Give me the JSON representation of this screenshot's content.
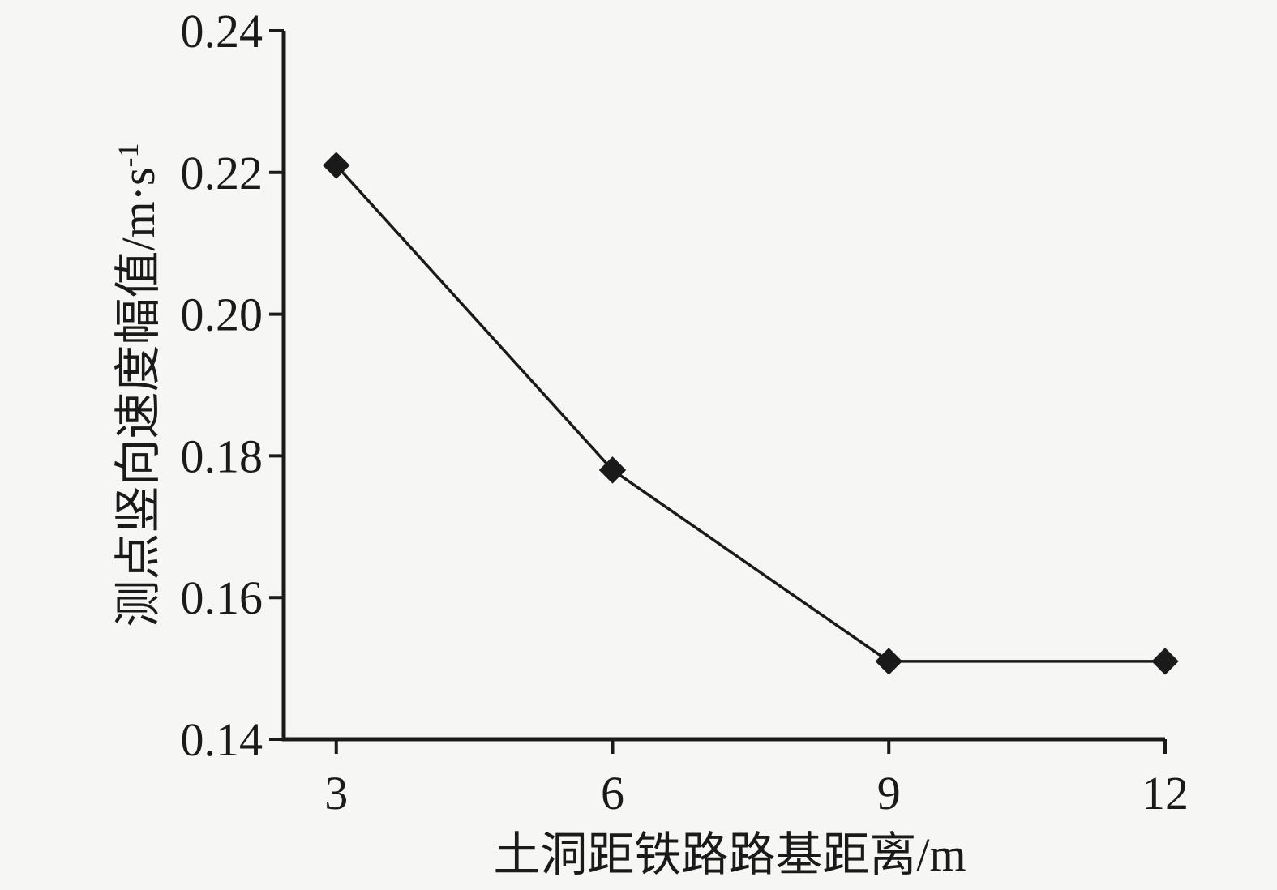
{
  "chart_data": {
    "type": "line",
    "title": "",
    "x": [
      3,
      6,
      9,
      12
    ],
    "series": [
      {
        "name": "测点竖向速度幅值",
        "values": [
          0.221,
          0.178,
          0.151,
          0.151
        ]
      }
    ],
    "xlabel": "土洞距铁路路基距离/m",
    "ylabel": "测点竖向速度幅值/m·s⁻¹",
    "ylabel_parts": {
      "base": "测点竖向速度幅值/m·s",
      "sup": "-1"
    },
    "xticks": [
      3,
      6,
      9,
      12
    ],
    "xtick_labels": [
      "3",
      "6",
      "9",
      "12"
    ],
    "yticks": [
      0.14,
      0.16,
      0.18,
      0.2,
      0.22,
      0.24
    ],
    "ytick_labels": [
      "0.14",
      "0.16",
      "0.18",
      "0.20",
      "0.22",
      "0.24"
    ],
    "xlim": [
      2.43,
      12
    ],
    "ylim": [
      0.14,
      0.24
    ],
    "marker": "diamond",
    "grid": false,
    "legend": null,
    "line_color": "#1a1a1a",
    "marker_color": "#1a1a1a",
    "background_color": "#f6f6f4"
  }
}
